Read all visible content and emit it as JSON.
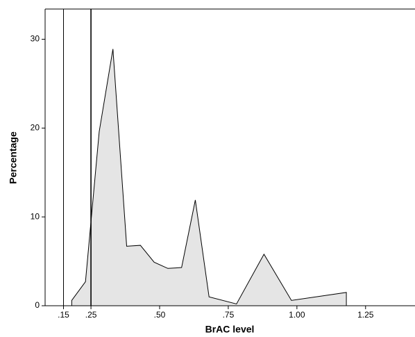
{
  "chart_data": {
    "type": "area",
    "x_label": "BrAC level",
    "y_label": "Percentage",
    "x": [
      0.18,
      0.23,
      0.28,
      0.33,
      0.38,
      0.43,
      0.48,
      0.53,
      0.58,
      0.63,
      0.68,
      0.78,
      0.88,
      0.98,
      1.18
    ],
    "values": [
      0.6,
      2.7,
      19.6,
      28.9,
      6.7,
      6.8,
      4.9,
      4.2,
      4.3,
      11.9,
      1.0,
      0.2,
      5.8,
      0.6,
      1.5
    ],
    "color": "#e5e5e5",
    "xlim": [
      0.083,
      1.43
    ],
    "xticks": [
      {
        "value": 0.15,
        "label": ".15"
      },
      {
        "value": 0.25,
        "label": ".25"
      },
      {
        "value": 0.5,
        "label": ".50"
      },
      {
        "value": 0.75,
        "label": ".75"
      },
      {
        "value": 1.0,
        "label": "1.00"
      },
      1.25
    ],
    "ylim": [
      0,
      33.4
    ],
    "yticks": [
      0,
      10,
      20,
      30
    ],
    "reference_lines": [
      0.15,
      0.25
    ]
  }
}
